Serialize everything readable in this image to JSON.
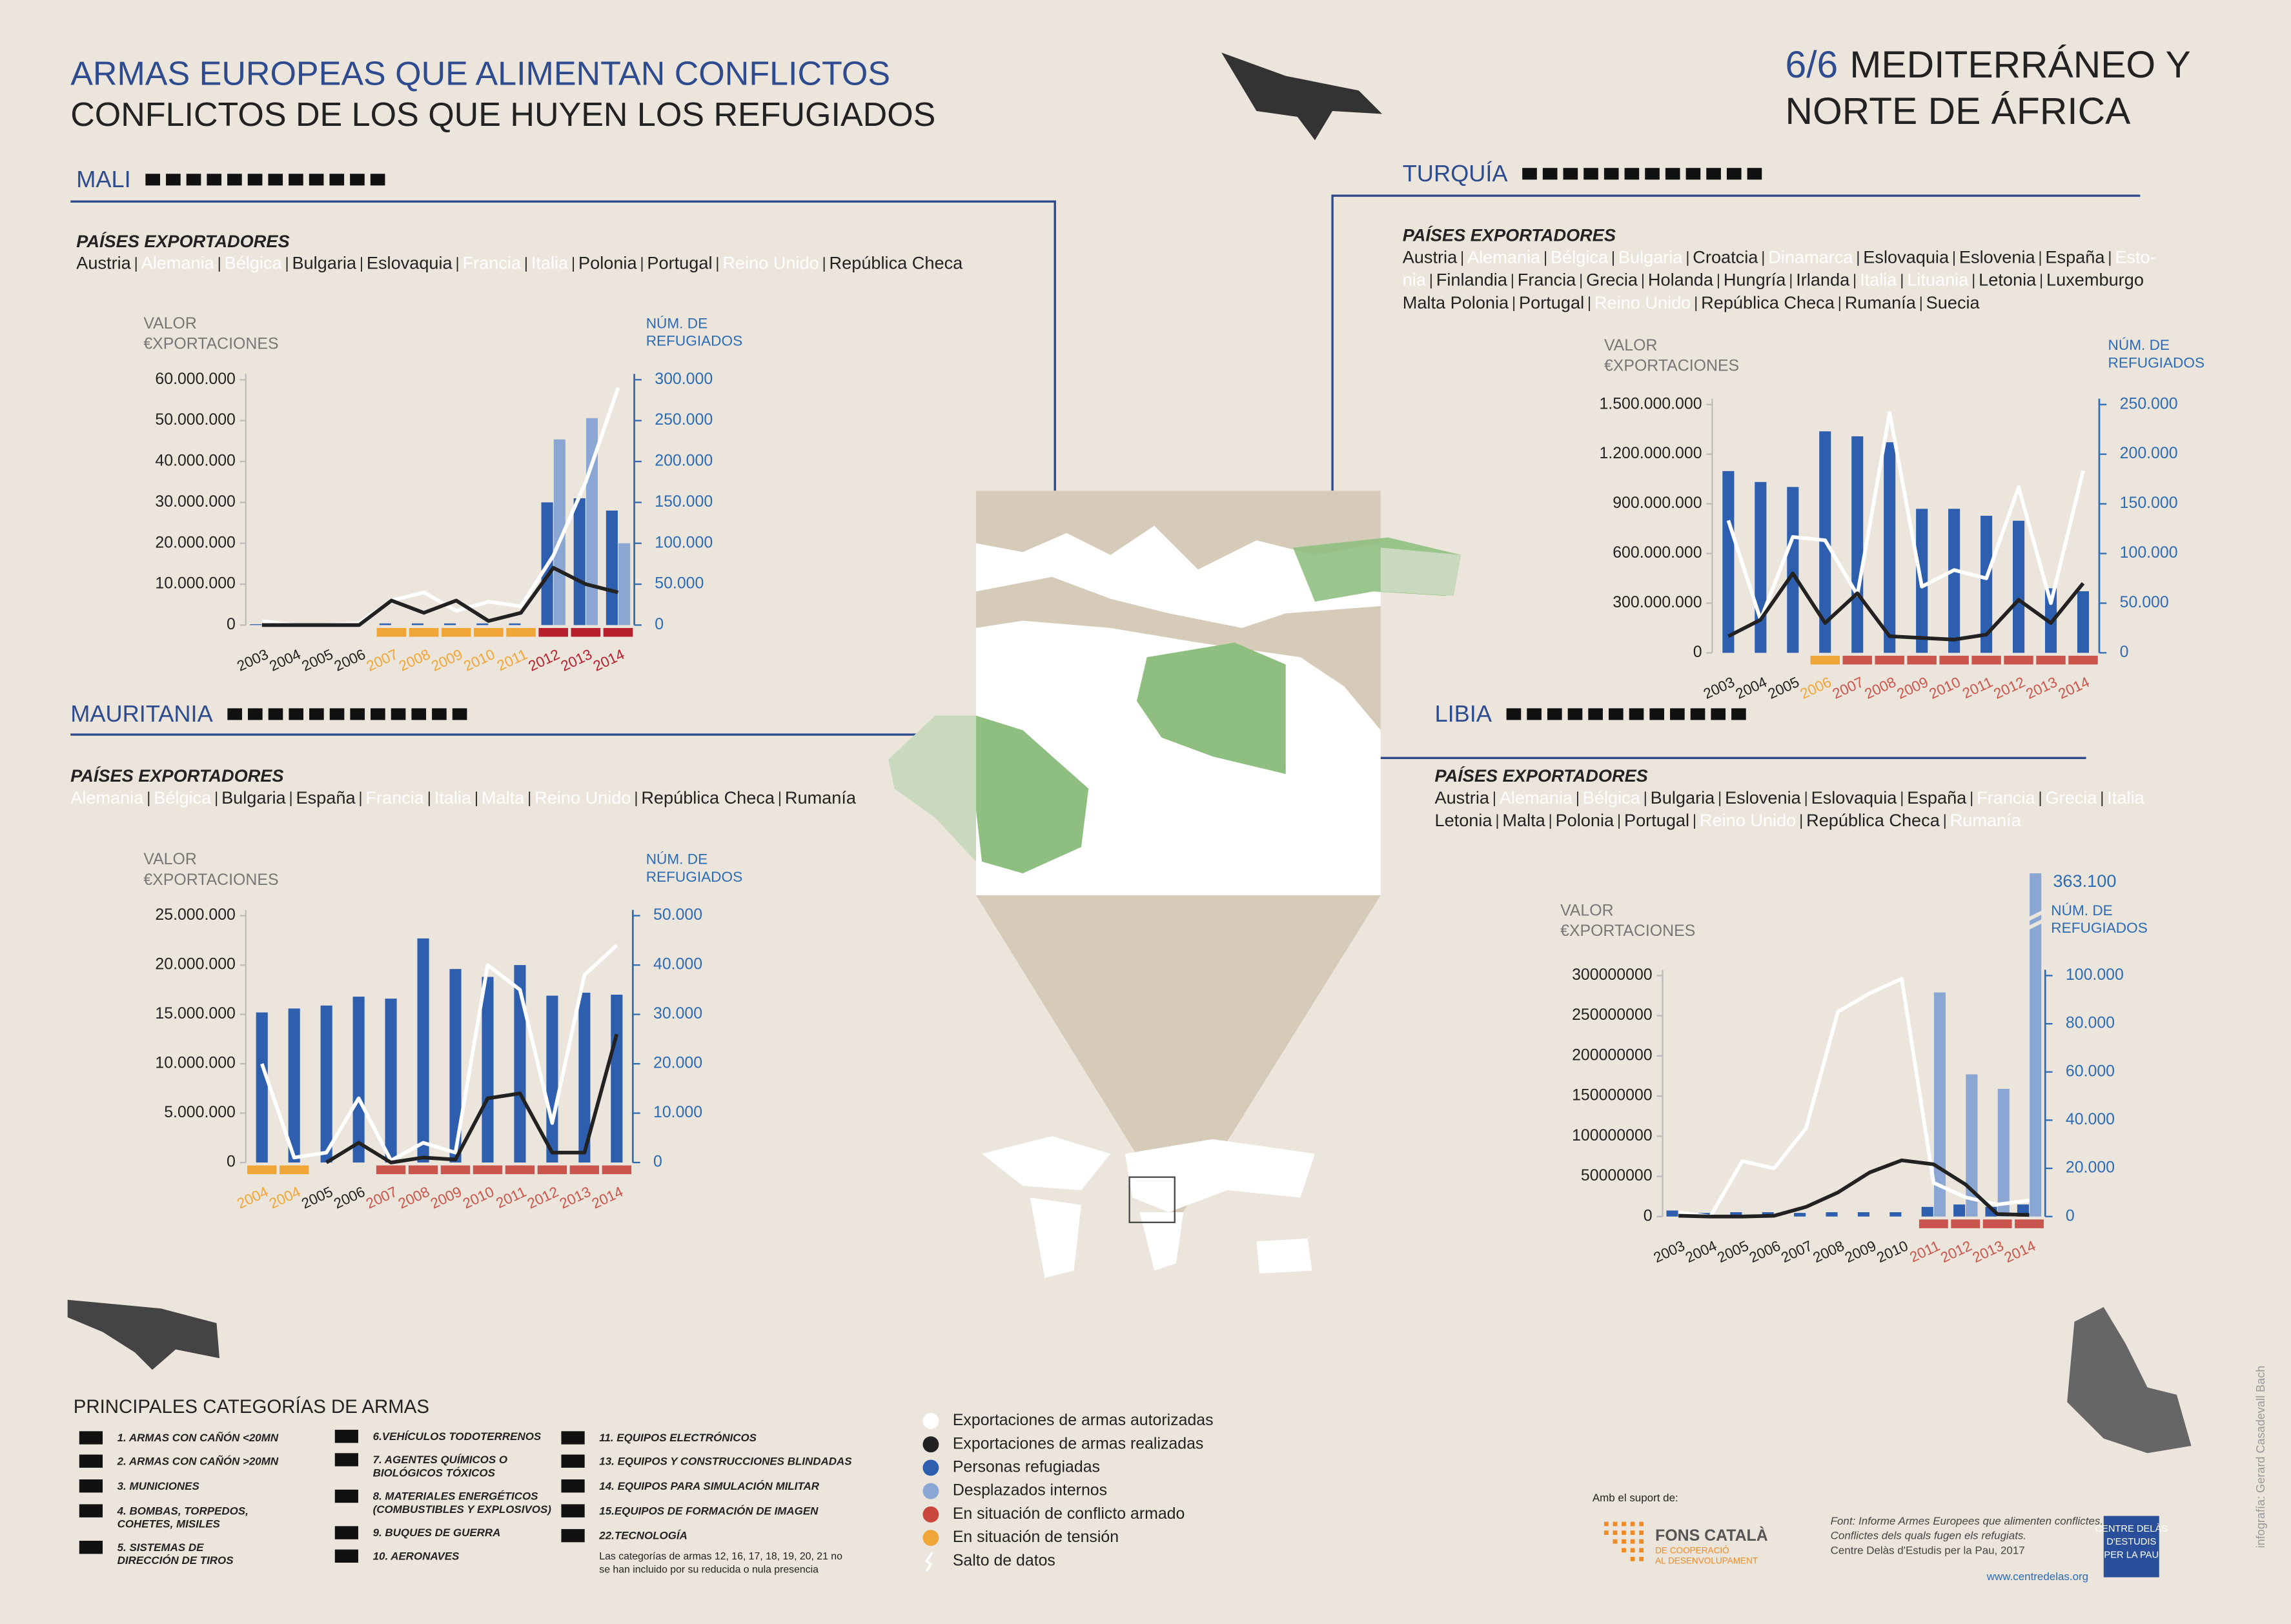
{
  "header": {
    "title": "ARMAS EUROPEAS QUE ALIMENTAN CONFLICTOS",
    "subtitle": "CONFLICTOS DE LOS QUE HUYEN LOS REFUGIADOS",
    "number": "6/6",
    "region_line1": "MEDITERRÁNEO Y",
    "region_line2": "NORTE DE ÁFRICA"
  },
  "chart_data": [
    {
      "type": "bar_line",
      "name": "MALI",
      "exporters_title": "PAÍSES EXPORTADORES",
      "exporters": [
        [
          {
            "text": "Austria"
          },
          {
            "text": "Alemania",
            "color": "#ffffff"
          },
          {
            "text": "Bélgica",
            "color": "#ffffff"
          },
          {
            "text": "Bulgaria"
          },
          {
            "text": "Eslovaquia"
          },
          {
            "text": "Francia",
            "color": "#ffffff"
          },
          {
            "text": "Italia",
            "color": "#ffffff"
          },
          {
            "text": "Polonia"
          },
          {
            "text": "Portugal"
          },
          {
            "text": "Reino Unido",
            "color": "#ffffff"
          },
          {
            "text": "República Checa"
          }
        ]
      ],
      "ylabel": [
        "VALOR",
        "€XPORTACIONES"
      ],
      "y2label": [
        "NÚM. DE",
        "REFUGIADOS"
      ],
      "categories": [
        "2003",
        "2004",
        "2005",
        "2006",
        "2007",
        "2008",
        "2009",
        "2010",
        "2011",
        "2012",
        "2013",
        "2014"
      ],
      "status_colors": [
        null,
        null,
        null,
        null,
        "#f0a637",
        "#f0a637",
        "#f0a637",
        "#f0a637",
        "#f0a637",
        "#b8202e",
        "#b8202e",
        "#b8202e"
      ],
      "ylim": [
        0,
        60000000
      ],
      "yticks": [
        0,
        {
          "value": 10000000,
          "label": "10.000.000"
        },
        {
          "value": 20000000,
          "label": "20.000.000"
        },
        {
          "value": 30000000,
          "label": "30.000.000"
        },
        {
          "value": 40000000,
          "label": "40.000.000"
        },
        {
          "value": 50000000,
          "label": "50.000.000"
        },
        {
          "value": 60000000,
          "label": "60.000.000"
        }
      ],
      "y2lim": [
        0,
        300000
      ],
      "y2ticks": [
        0,
        {
          "value": 50000,
          "label": "50.000"
        },
        {
          "value": 100000,
          "label": "100.000"
        },
        {
          "value": 150000,
          "label": "150.000"
        },
        {
          "value": 200000,
          "label": "200.000"
        },
        {
          "value": 250000,
          "label": "250.000"
        },
        {
          "value": 300000,
          "label": "300.000"
        }
      ],
      "series": [
        {
          "kind": "bar",
          "axis": "y2",
          "color": "#2d5fae",
          "values": [
            1000,
            1000,
            1000,
            1000,
            2000,
            2000,
            2000,
            2000,
            2000,
            150000,
            155000,
            140000
          ]
        },
        {
          "kind": "bar",
          "axis": "y2",
          "color": "#8aa6d3",
          "values": [
            null,
            null,
            null,
            null,
            null,
            null,
            null,
            null,
            null,
            227000,
            253000,
            100000
          ]
        },
        {
          "kind": "line",
          "color": "#ffffff",
          "values": [
            1000000,
            0,
            0,
            500000,
            6000000,
            8000000,
            3500000,
            5700000,
            4600000,
            17000000,
            35000000,
            58000000
          ]
        },
        {
          "kind": "line",
          "color": "#222222",
          "values": [
            0,
            0,
            0,
            0,
            6000000,
            3000000,
            6000000,
            1000000,
            3000000,
            14000000,
            10000000,
            8000000
          ]
        }
      ]
    },
    {
      "type": "bar_line",
      "name": "TURQUÍA",
      "exporters_title": "PAÍSES EXPORTADORES",
      "exporters": [
        [
          {
            "text": "Austria"
          },
          {
            "text": "Alemania",
            "color": "#ffffff"
          },
          {
            "text": "Bélgica",
            "color": "#ffffff"
          },
          {
            "text": "Bulgaria",
            "color": "#ffffff"
          },
          {
            "text": "Croatcia"
          },
          {
            "text": "Dinamarca",
            "color": "#ffffff"
          },
          {
            "text": "Eslovaquia"
          },
          {
            "text": "Eslovenia"
          },
          {
            "text": "España"
          },
          {
            "text": "Esto-",
            "color": "#ffffff"
          }
        ],
        [
          {
            "text": "nia",
            "color": "#ffffff"
          },
          {
            "text": "Finlandia"
          },
          {
            "text": "Francia"
          },
          {
            "text": "Grecia"
          },
          {
            "text": "Holanda"
          },
          {
            "text": "Hungría"
          },
          {
            "text": "Irlanda"
          },
          {
            "text": "Italia",
            "color": "#ffffff"
          },
          {
            "text": "Lituania",
            "color": "#ffffff"
          },
          {
            "text": "Letonia"
          },
          {
            "text": "Luxemburgo"
          }
        ],
        [
          {
            "text": "Malta Polonia"
          },
          {
            "text": "Portugal"
          },
          {
            "text": "Reino Unido",
            "color": "#ffffff"
          },
          {
            "text": "República Checa"
          },
          {
            "text": "Rumanía"
          },
          {
            "text": "Suecia"
          }
        ]
      ],
      "ylabel": [
        "VALOR",
        "€XPORTACIONES"
      ],
      "y2label": [
        "NÚM. DE",
        "REFUGIADOS"
      ],
      "categories": [
        "2003",
        "2004",
        "2005",
        "2006",
        "2007",
        "2008",
        "2009",
        "2010",
        "2011",
        "2012",
        "2013",
        "2014"
      ],
      "status_colors": [
        null,
        null,
        null,
        "#f0a637",
        "#c9554c",
        "#c9554c",
        "#c9554c",
        "#c9554c",
        "#c9554c",
        "#c9554c",
        "#c9554c",
        "#c9554c"
      ],
      "ylim": [
        0,
        1500000000
      ],
      "yticks": [
        0,
        {
          "value": 300000000,
          "label": "300.000.000"
        },
        {
          "value": 600000000,
          "label": "600.000.000"
        },
        {
          "value": 900000000,
          "label": "900.000.000"
        },
        {
          "value": 1200000000,
          "label": "1.200.000.000"
        },
        {
          "value": 1500000000,
          "label": "1.500.000.000"
        }
      ],
      "y2lim": [
        0,
        250000
      ],
      "y2ticks": [
        0,
        {
          "value": 50000,
          "label": "50.000"
        },
        {
          "value": 100000,
          "label": "100.000"
        },
        {
          "value": 150000,
          "label": "150.000"
        },
        {
          "value": 200000,
          "label": "200.000"
        },
        {
          "value": 250000,
          "label": "250.000"
        }
      ],
      "series": [
        {
          "kind": "bar",
          "axis": "y2",
          "color": "#2d5fae",
          "values": [
            183000,
            172000,
            167000,
            223000,
            218000,
            212000,
            145000,
            145000,
            138000,
            133000,
            65000,
            62000
          ]
        },
        {
          "kind": "line",
          "color": "#ffffff",
          "values": [
            800000000,
            200000000,
            700000000,
            680000000,
            350000000,
            1450000000,
            400000000,
            500000000,
            450000000,
            1000000000,
            300000000,
            1100000000
          ]
        },
        {
          "kind": "line",
          "color": "#222222",
          "values": [
            100000000,
            200000000,
            480000000,
            180000000,
            360000000,
            100000000,
            90000000,
            80000000,
            110000000,
            320000000,
            180000000,
            420000000
          ]
        }
      ]
    },
    {
      "type": "bar_line",
      "name": "MAURITANIA",
      "exporters_title": "PAÍSES EXPORTADORES",
      "exporters": [
        [
          {
            "text": "Alemania",
            "color": "#ffffff"
          },
          {
            "text": "Bélgica",
            "color": "#ffffff"
          },
          {
            "text": "Bulgaria"
          },
          {
            "text": "España"
          },
          {
            "text": "Francia",
            "color": "#ffffff"
          },
          {
            "text": "Italia",
            "color": "#ffffff"
          },
          {
            "text": "Malta",
            "color": "#ffffff"
          },
          {
            "text": "Reino Unido",
            "color": "#ffffff"
          },
          {
            "text": "República Checa"
          },
          {
            "text": "Rumanía"
          }
        ]
      ],
      "ylabel": [
        "VALOR",
        "€XPORTACIONES"
      ],
      "y2label": [
        "NÚM. DE",
        "REFUGIADOS"
      ],
      "categories": [
        "2004",
        "2004",
        "2005",
        "2006",
        "2007",
        "2008",
        "2009",
        "2010",
        "2011",
        "2012",
        "2013",
        "2014"
      ],
      "status_colors": [
        "#f0a637",
        "#f0a637",
        null,
        null,
        "#c9554c",
        "#c9554c",
        "#c9554c",
        "#c9554c",
        "#c9554c",
        "#c9554c",
        "#c9554c",
        "#c9554c"
      ],
      "ylim": [
        0,
        25000000
      ],
      "yticks": [
        0,
        {
          "value": 5000000,
          "label": "5.000.000"
        },
        {
          "value": 10000000,
          "label": "10.000.000"
        },
        {
          "value": 15000000,
          "label": "15.000.000"
        },
        {
          "value": 20000000,
          "label": "20.000.000"
        },
        {
          "value": 25000000,
          "label": "25.000.000"
        }
      ],
      "y2lim": [
        0,
        50000
      ],
      "y2ticks": [
        0,
        {
          "value": 10000,
          "label": "10.000"
        },
        {
          "value": 20000,
          "label": "20.000"
        },
        {
          "value": 30000,
          "label": "30.000"
        },
        {
          "value": 40000,
          "label": "40.000"
        },
        {
          "value": 50000,
          "label": "50.000"
        }
      ],
      "series": [
        {
          "kind": "bar",
          "axis": "y2",
          "color": "#2d5fae",
          "values": [
            30400,
            31200,
            31800,
            33600,
            33200,
            45400,
            39200,
            37600,
            40000,
            33800,
            34400,
            34000
          ]
        },
        {
          "kind": "line",
          "color": "#ffffff",
          "values": [
            10000000,
            500000,
            1000000,
            6500000,
            200000,
            2000000,
            1000000,
            20000000,
            17500000,
            4000000,
            19000000,
            22000000
          ]
        },
        {
          "kind": "line",
          "color": "#222222",
          "values": [
            null,
            null,
            0,
            2000000,
            0,
            500000,
            300000,
            6500000,
            7000000,
            1000000,
            1000000,
            13000000
          ]
        }
      ]
    },
    {
      "type": "bar_line",
      "name": "LIBIA",
      "exporters_title": "PAÍSES EXPORTADORES",
      "exporters": [
        [
          {
            "text": "Austria"
          },
          {
            "text": "Alemania",
            "color": "#ffffff"
          },
          {
            "text": "Bélgica",
            "color": "#ffffff"
          },
          {
            "text": "Bulgaria"
          },
          {
            "text": "Eslovenia"
          },
          {
            "text": "Eslovaquia"
          },
          {
            "text": "España"
          },
          {
            "text": "Francia",
            "color": "#ffffff"
          },
          {
            "text": "Grecia",
            "color": "#ffffff"
          },
          {
            "text": "Italia",
            "color": "#ffffff"
          }
        ],
        [
          {
            "text": "Letonia"
          },
          {
            "text": "Malta"
          },
          {
            "text": "Polonia"
          },
          {
            "text": "Portugal"
          },
          {
            "text": "Reino Unido",
            "color": "#ffffff"
          },
          {
            "text": "República Checa"
          },
          {
            "text": "Rumanía",
            "color": "#ffffff"
          }
        ]
      ],
      "ylabel": [
        "VALOR",
        "€XPORTACIONES"
      ],
      "y2label": [
        "NÚM. DE",
        "REFUGIADOS"
      ],
      "categories": [
        "2003",
        "2004",
        "2005",
        "2006",
        "2007",
        "2008",
        "2009",
        "2010",
        "2011",
        "2012",
        "2013",
        "2014"
      ],
      "status_colors": [
        null,
        null,
        null,
        null,
        null,
        null,
        null,
        null,
        "#c9554c",
        "#c9554c",
        "#c9554c",
        "#c9554c"
      ],
      "ylim": [
        0,
        300000000
      ],
      "yticks": [
        0,
        50000000,
        100000000,
        150000000,
        200000000,
        250000000,
        300000000
      ],
      "y2lim": [
        0,
        100000
      ],
      "y2ticks": [
        0,
        {
          "value": 20000,
          "label": "20.000"
        },
        {
          "value": 40000,
          "label": "40.000"
        },
        {
          "value": 60000,
          "label": "60.000"
        },
        {
          "value": 80000,
          "label": "80.000"
        },
        {
          "value": 100000,
          "label": "100.000"
        }
      ],
      "series": [
        {
          "kind": "bar",
          "axis": "y2",
          "color": "#2d5fae",
          "values": [
            2500,
            1500,
            1800,
            1800,
            1500,
            1800,
            1800,
            1800,
            4000,
            5000,
            4000,
            5000
          ]
        },
        {
          "kind": "bar",
          "axis": "y2",
          "color": "#8aa6d3",
          "values": [
            null,
            null,
            null,
            null,
            null,
            null,
            null,
            null,
            93000,
            59000,
            53000,
            363100
          ],
          "value_labels": [
            null,
            null,
            null,
            null,
            null,
            null,
            null,
            null,
            null,
            null,
            null,
            "363.100"
          ]
        },
        {
          "kind": "line",
          "color": "#ffffff",
          "values": [
            5000000,
            0,
            69000000,
            60000000,
            110000000,
            255000000,
            278000000,
            296000000,
            42000000,
            24000000,
            15000000,
            20000000
          ]
        },
        {
          "kind": "line",
          "color": "#222222",
          "values": [
            1000000,
            0,
            0,
            1000000,
            12000000,
            30000000,
            55000000,
            70000000,
            65000000,
            40000000,
            3000000,
            2000000
          ]
        }
      ]
    }
  ],
  "legend": [
    {
      "name": "Exportaciones de armas autorizadas",
      "color": "#ffffff"
    },
    {
      "name": "Exportaciones de armas realizadas",
      "color": "#222222"
    },
    {
      "name": "Personas refugiadas",
      "color": "#2d5fae"
    },
    {
      "name": "Desplazados internos",
      "color": "#8aa6d3"
    },
    {
      "name": "En situación de conflicto armado",
      "color": "#c9463d"
    },
    {
      "name": "En situación de tensión",
      "color": "#f0a637"
    },
    {
      "name": "Salto de datos"
    }
  ],
  "weapon_categories": {
    "title": "PRINCIPALES CATEGORÍAS DE ARMAS",
    "items": [
      {
        "lines": [
          "1. ARMAS CON CAÑÓN <20MN"
        ]
      },
      {
        "lines": [
          "2. ARMAS CON CAÑÓN >20MN"
        ]
      },
      {
        "lines": [
          "3. MUNICIONES"
        ]
      },
      {
        "lines": [
          "4. BOMBAS, TORPEDOS,",
          "COHETES, MISILES"
        ]
      },
      {
        "lines": [
          "5. SISTEMAS DE",
          "DIRECCIÓN DE TIROS"
        ]
      },
      {
        "lines": [
          "6.VEHÍCULOS TODOTERRENOS"
        ]
      },
      {
        "lines": [
          "7. AGENTES QUÍMICOS O",
          "BIOLÓGICOS TÓXICOS"
        ]
      },
      {
        "lines": [
          "8. MATERIALES ENERGÉTICOS",
          "(COMBUSTIBLES Y EXPLOSIVOS)"
        ]
      },
      {
        "lines": [
          "9. BUQUES DE GUERRA"
        ]
      },
      {
        "lines": [
          "10. AERONAVES"
        ]
      },
      {
        "lines": [
          "11. EQUIPOS ELECTRÓNICOS"
        ]
      },
      {
        "lines": [
          "13. EQUIPOS Y CONSTRUCCIONES BLINDADAS"
        ]
      },
      {
        "lines": [
          "14. EQUIPOS PARA SIMULACIÓN MILITAR"
        ]
      },
      {
        "lines": [
          "15.EQUIPOS DE FORMACIÓN DE IMAGEN"
        ]
      },
      {
        "lines": [
          "22.TECNOLOGÍA"
        ]
      }
    ],
    "note": [
      "Las categorías de armas 12, 16, 17, 18, 19, 20, 21 no",
      "se han incluido por su reducida o nula presencia"
    ]
  },
  "credits": {
    "support": "Amb el suport de:",
    "fons": "FONS CATALÀ",
    "fons_sub": [
      "DE COOPERACIÓ",
      "AL DESENVOLUPAMENT"
    ],
    "source": [
      "Font: Informe Armes Europees que alimenten conflictes.",
      "Conflictes dels quals fugen els refugiats.",
      "Centre Delàs d'Estudis per la Pau, 2017"
    ],
    "logo": [
      "CENTRE DELÀS",
      "D'ESTUDIS",
      "PER LA PAU"
    ],
    "url": "www.centredelas.org",
    "author": "infografía: Gerard Casadevall Bach"
  }
}
